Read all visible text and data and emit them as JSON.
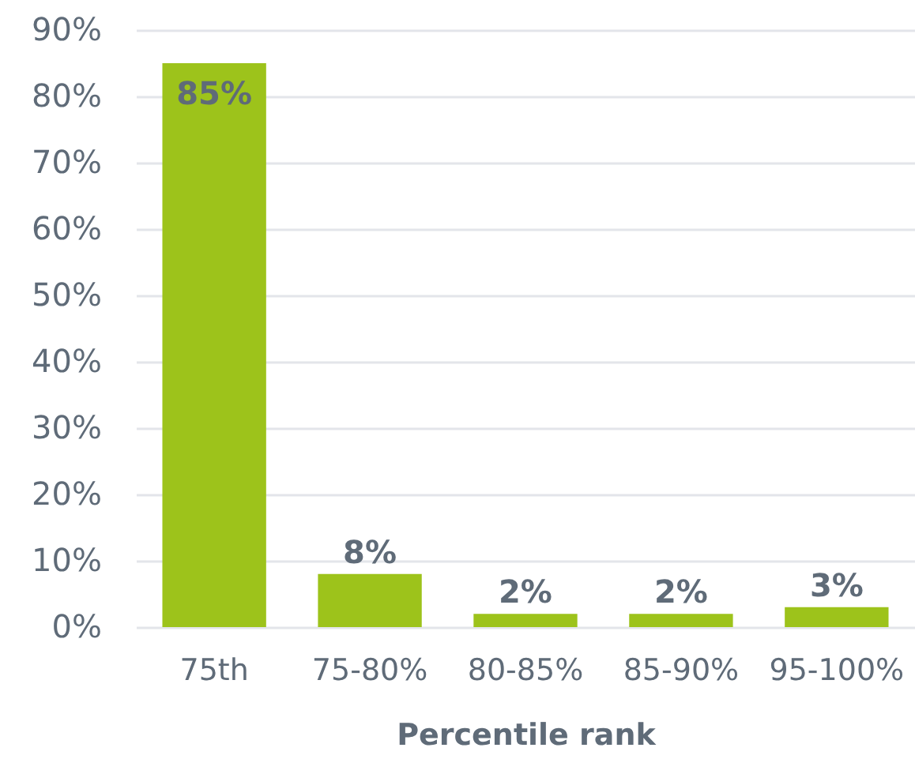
{
  "chart_data": {
    "type": "bar",
    "xlabel": "Percentile rank",
    "categories": [
      "75th",
      "75-80%",
      "80-85%",
      "85-90%",
      "95-100%"
    ],
    "values": [
      85,
      8,
      2,
      2,
      3
    ],
    "color": "#9dc31b",
    "value_labels": [
      "85%",
      "8%",
      "2%",
      "2%",
      "3%"
    ],
    "ylim": [
      0,
      90
    ],
    "yticks": [
      {
        "value": 0,
        "label": "0%"
      },
      {
        "value": 10,
        "label": "10%"
      },
      {
        "value": 20,
        "label": "20%"
      },
      {
        "value": 30,
        "label": "30%"
      },
      {
        "value": 40,
        "label": "40%"
      },
      {
        "value": 50,
        "label": "50%"
      },
      {
        "value": 60,
        "label": "60%"
      },
      {
        "value": 70,
        "label": "70%"
      },
      {
        "value": 80,
        "label": "80%"
      },
      {
        "value": 90,
        "label": "90%"
      }
    ],
    "grid": "y"
  }
}
